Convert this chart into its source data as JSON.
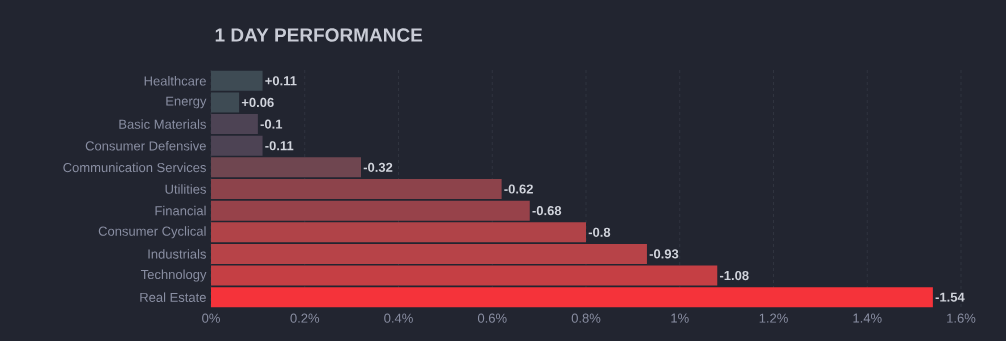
{
  "chart_data": {
    "type": "bar",
    "orientation": "horizontal",
    "title": "1 DAY PERFORMANCE",
    "categories": [
      "Healthcare",
      "Energy",
      "Basic Materials",
      "Consumer Defensive",
      "Communication Services",
      "Utilities",
      "Financial",
      "Consumer Cyclical",
      "Industrials",
      "Technology",
      "Real Estate"
    ],
    "values": [
      0.11,
      0.06,
      0.1,
      0.11,
      0.32,
      0.62,
      0.68,
      0.8,
      0.93,
      1.08,
      1.54
    ],
    "annotations": [
      {
        "text": "+0.11",
        "x": 0.11,
        "y": "Healthcare"
      },
      {
        "text": "+0.06",
        "x": 0.06,
        "y": "Energy"
      },
      {
        "text": "-0.1",
        "x": 0.1,
        "y": "Basic Materials"
      },
      {
        "text": "-0.11",
        "x": 0.11,
        "y": "Consumer Defensive"
      },
      {
        "text": "-0.32",
        "x": 0.32,
        "y": "Communication Services"
      },
      {
        "text": "-0.62",
        "x": 0.62,
        "y": "Utilities"
      },
      {
        "text": "-0.68",
        "x": 0.68,
        "y": "Financial"
      },
      {
        "text": "-0.8",
        "x": 0.8,
        "y": "Consumer Cyclical"
      },
      {
        "text": "-0.93",
        "x": 0.93,
        "y": "Industrials"
      },
      {
        "text": "-1.08",
        "x": 1.08,
        "y": "Technology"
      },
      {
        "text": "-1.54",
        "x": 1.54,
        "y": "Real Estate"
      }
    ],
    "colors": [
      "#3e4b54",
      "#3e4b54",
      "#4d4354",
      "#4d4354",
      "#6f4650",
      "#8d434b",
      "#97424a",
      "#b04348",
      "#b74348",
      "#c53f44",
      "#f5333a"
    ],
    "xlim": [
      0,
      1.6
    ],
    "xticks": [
      {
        "value": 0,
        "label": "0%"
      },
      {
        "value": 0.2,
        "label": "0.2%"
      },
      {
        "value": 0.4,
        "label": "0.4%"
      },
      {
        "value": 0.6,
        "label": "0.6%"
      },
      {
        "value": 0.8,
        "label": "0.8%"
      },
      {
        "value": 1,
        "label": "1%"
      },
      {
        "value": 1.2,
        "label": "1.2%"
      },
      {
        "value": 1.4,
        "label": "1.4%"
      },
      {
        "value": 1.6,
        "label": "1.6%"
      }
    ],
    "grid": "x"
  }
}
